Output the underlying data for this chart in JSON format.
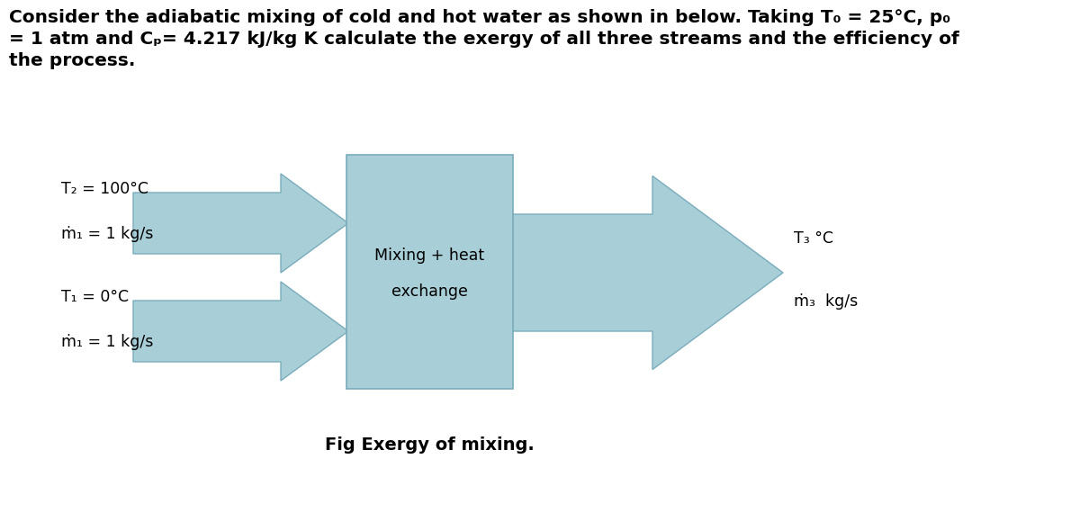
{
  "title_line1": "Consider the adiabatic mixing of cold and hot water as shown in below. Taking T₀ = 25°C, p₀",
  "title_line2": "= 1 atm and Cₚ= 4.217 kJ/kg K calculate the exergy of all three streams and the efficiency of",
  "title_line3": "the process.",
  "box_color": "#a8ced8",
  "box_edge_color": "#7aacbc",
  "box_label_line1": "Mixing + heat",
  "box_label_line2": "exchange",
  "top_arrow_label_line1": "T₂ = 100°C",
  "top_arrow_label_line2": "ṁ₁ = 1 kg/s",
  "bot_arrow_label_line1": "T₁ = 0°C",
  "bot_arrow_label_line2": "ṁ₁ = 1 kg/s",
  "out_arrow_label_line1": "T₃ °C",
  "out_arrow_label_line2": "ṁ₃  kg/s",
  "fig_caption": "Fig Exergy of mixing.",
  "bg_color": "#ffffff",
  "text_color": "#000000",
  "title_fontsize": 14.5,
  "label_fontsize": 12.5,
  "caption_fontsize": 14
}
